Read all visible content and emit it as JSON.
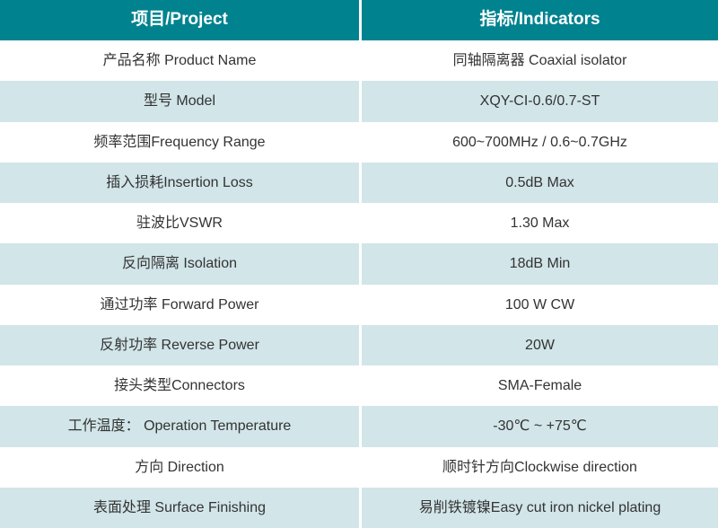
{
  "header": {
    "project": "项目/Project",
    "indicators": "指标/Indicators"
  },
  "rows": [
    {
      "project": "产品名称 Product Name",
      "indicator": "同轴隔离器 Coaxial isolator"
    },
    {
      "project": "型号 Model",
      "indicator": "XQY-CI-0.6/0.7-ST"
    },
    {
      "project": "频率范围Frequency Range",
      "indicator": "600~700MHz / 0.6~0.7GHz"
    },
    {
      "project": "插入损耗Insertion Loss",
      "indicator": "0.5dB Max"
    },
    {
      "project": "驻波比VSWR",
      "indicator": "1.30 Max"
    },
    {
      "project": "反向隔离 Isolation",
      "indicator": "18dB Min"
    },
    {
      "project": "通过功率 Forward Power",
      "indicator": "100 W CW"
    },
    {
      "project": "反射功率 Reverse Power",
      "indicator": "20W"
    },
    {
      "project": "接头类型Connectors",
      "indicator": "SMA-Female"
    },
    {
      "project": "工作温度：  Operation Temperature",
      "indicator": "-30℃ ~ +75℃"
    },
    {
      "project": "方向 Direction",
      "indicator": "顺时针方向Clockwise direction"
    },
    {
      "project": "表面处理 Surface Finishing",
      "indicator": "易削铁镀镍Easy cut iron nickel plating"
    }
  ],
  "colors": {
    "header_bg": "#00838f",
    "header_text": "#ffffff",
    "row_bg": "#ffffff",
    "row_alt_bg": "#d2e5e9",
    "body_text": "#333333"
  }
}
